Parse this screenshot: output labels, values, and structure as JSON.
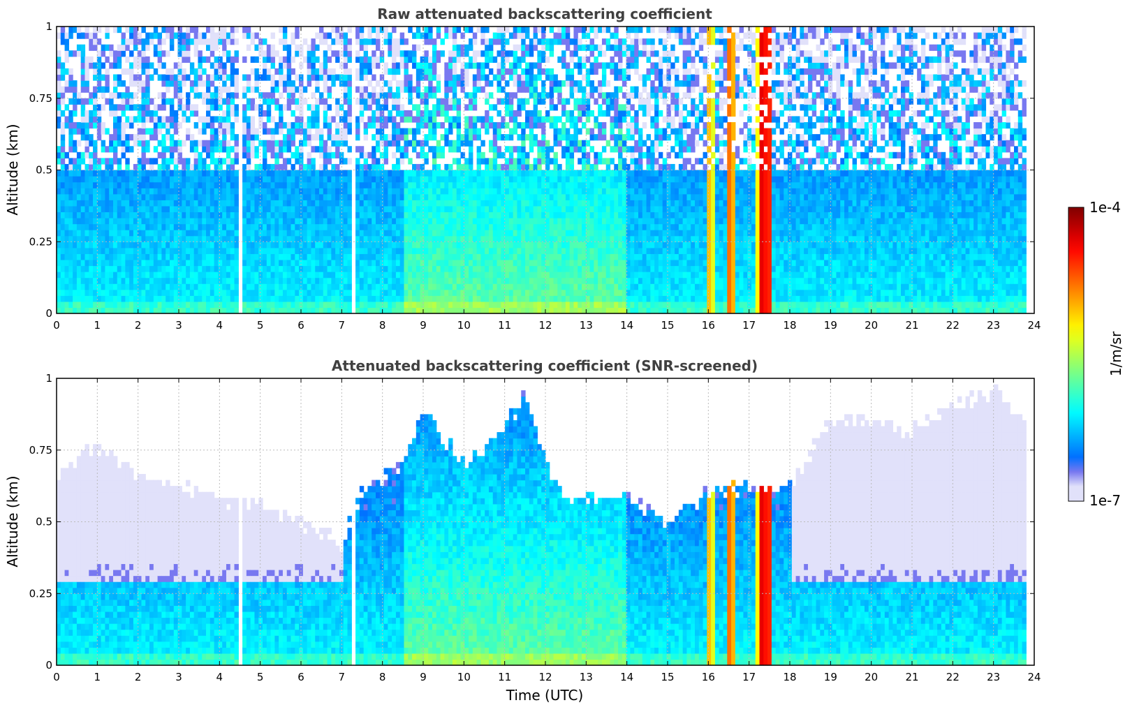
{
  "chart_data": [
    {
      "type": "heatmap",
      "title": "Raw attenuated backscattering coefficient",
      "xlabel": "",
      "ylabel": "Altitude (km)",
      "xlim": [
        0,
        24
      ],
      "ylim": [
        0,
        1
      ],
      "xticks": [
        "0",
        "1",
        "2",
        "3",
        "4",
        "5",
        "6",
        "7",
        "8",
        "9",
        "10",
        "11",
        "12",
        "13",
        "14",
        "15",
        "16",
        "17",
        "18",
        "19",
        "20",
        "21",
        "22",
        "23",
        "24"
      ],
      "yticks": [
        "0",
        "0.25",
        "0.5",
        "0.75",
        "1"
      ],
      "grid": true,
      "data_end_time": 23.8,
      "gaps": [
        [
          7.2,
          7.3
        ],
        [
          4.5,
          4.52
        ]
      ],
      "plumes": [
        {
          "time": 16.05,
          "peak_log": -4.7
        },
        {
          "time": 16.55,
          "peak_log": -4.4
        },
        {
          "time": 17.3,
          "peak_log": -4.3
        },
        {
          "time": 17.45,
          "peak_log": -4.0
        }
      ],
      "screened": false
    },
    {
      "type": "heatmap",
      "title": "Attenuated backscattering coefficient (SNR-screened)",
      "xlabel": "Time (UTC)",
      "ylabel": "Altitude (km)",
      "xlim": [
        0,
        24
      ],
      "ylim": [
        0,
        1
      ],
      "xticks": [
        "0",
        "1",
        "2",
        "3",
        "4",
        "5",
        "6",
        "7",
        "8",
        "9",
        "10",
        "11",
        "12",
        "13",
        "14",
        "15",
        "16",
        "17",
        "18",
        "19",
        "20",
        "21",
        "22",
        "23",
        "24"
      ],
      "yticks": [
        "0",
        "0.25",
        "0.5",
        "0.75",
        "1"
      ],
      "grid": true,
      "data_end_time": 23.8,
      "gaps": [
        [
          7.2,
          7.3
        ],
        [
          4.5,
          4.52
        ]
      ],
      "plumes": [
        {
          "time": 16.05,
          "peak_log": -4.7
        },
        {
          "time": 16.55,
          "peak_log": -4.4
        },
        {
          "time": 17.3,
          "peak_log": -4.3
        },
        {
          "time": 17.45,
          "peak_log": -4.0
        }
      ],
      "screened": true,
      "boundary_height_km": [
        [
          0,
          0.66
        ],
        [
          1,
          0.76
        ],
        [
          2,
          0.68
        ],
        [
          3,
          0.62
        ],
        [
          4,
          0.58
        ],
        [
          5,
          0.55
        ],
        [
          6,
          0.5
        ],
        [
          7,
          0.42
        ],
        [
          7.5,
          0.6
        ],
        [
          8,
          0.65
        ],
        [
          8.5,
          0.7
        ],
        [
          9,
          0.9
        ],
        [
          9.5,
          0.78
        ],
        [
          10,
          0.7
        ],
        [
          11,
          0.82
        ],
        [
          11.5,
          0.95
        ],
        [
          12,
          0.7
        ],
        [
          12.5,
          0.58
        ],
        [
          13,
          0.58
        ],
        [
          14,
          0.58
        ],
        [
          15,
          0.5
        ],
        [
          16,
          0.6
        ],
        [
          17,
          0.62
        ],
        [
          18,
          0.62
        ],
        [
          19,
          0.86
        ],
        [
          20,
          0.85
        ],
        [
          21,
          0.82
        ],
        [
          22,
          0.9
        ],
        [
          23,
          0.95
        ],
        [
          23.8,
          0.85
        ]
      ]
    }
  ],
  "colorbar": {
    "label": "1/m/sr",
    "max_label": "1e-4",
    "min_label": "1e-7",
    "log_min": -7,
    "log_max": -4,
    "colormap": "jet"
  }
}
